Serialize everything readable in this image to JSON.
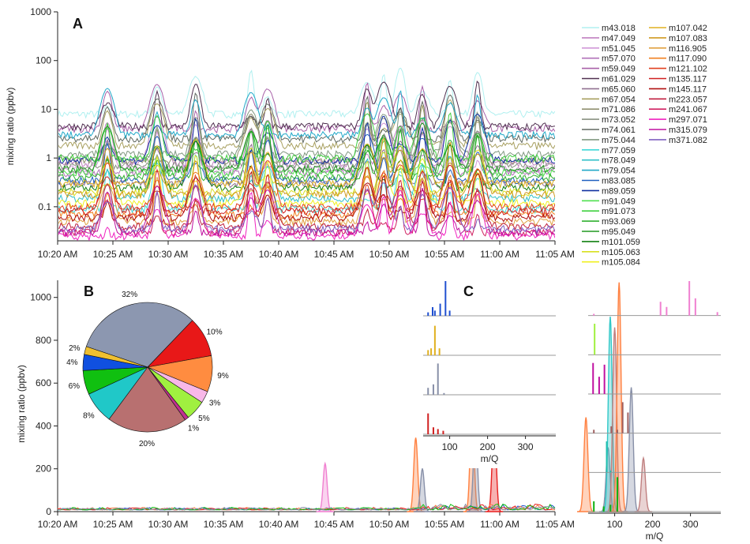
{
  "chart_data": [
    {
      "panel": "A",
      "type": "line",
      "ylabel": "mixing ratio (ppbv)",
      "yscale": "log",
      "ylim": [
        0.02,
        1000
      ],
      "y_ticks": [
        "0.1",
        "1",
        "10",
        "100",
        "1000"
      ],
      "x_ticks": [
        "10:20 AM",
        "10:25 AM",
        "10:30 AM",
        "10:35 AM",
        "10:40 AM",
        "10:45 AM",
        "10:50 AM",
        "10:55 AM",
        "11:00 AM",
        "11:05 AM"
      ],
      "legend_position": "right",
      "series": [
        {
          "name": "m43.018",
          "color": "#b0f0f0",
          "base": 8
        },
        {
          "name": "m47.049",
          "color": "#c080c0",
          "base": 0.8
        },
        {
          "name": "m51.045",
          "color": "#d098d8",
          "base": 0.6
        },
        {
          "name": "m57.070",
          "color": "#b070b8",
          "base": 0.5
        },
        {
          "name": "m59.049",
          "color": "#a860a8",
          "base": 4
        },
        {
          "name": "m61.029",
          "color": "#503050",
          "base": 4.5
        },
        {
          "name": "m65.060",
          "color": "#907090",
          "base": 0.3
        },
        {
          "name": "m67.054",
          "color": "#a8a060",
          "base": 1.8
        },
        {
          "name": "m71.086",
          "color": "#909070",
          "base": 0.9
        },
        {
          "name": "m73.052",
          "color": "#889080",
          "base": 0.7
        },
        {
          "name": "m74.061",
          "color": "#606860",
          "base": 2.5
        },
        {
          "name": "m75.044",
          "color": "#809880",
          "base": 1.2
        },
        {
          "name": "m77.059",
          "color": "#40d8d8",
          "base": 0.09
        },
        {
          "name": "m78.049",
          "color": "#30c0c8",
          "base": 0.15
        },
        {
          "name": "m79.054",
          "color": "#20a8c8",
          "base": 3
        },
        {
          "name": "m83.085",
          "color": "#2060c0",
          "base": 0.35
        },
        {
          "name": "m89.059",
          "color": "#1030a0",
          "base": 0.9
        },
        {
          "name": "m91.049",
          "color": "#50e050",
          "base": 0.5
        },
        {
          "name": "m91.073",
          "color": "#40d040",
          "base": 1.0
        },
        {
          "name": "m93.069",
          "color": "#30b030",
          "base": 0.4
        },
        {
          "name": "m95.049",
          "color": "#209820",
          "base": 0.6
        },
        {
          "name": "m101.059",
          "color": "#108010",
          "base": 0.25
        },
        {
          "name": "m105.063",
          "color": "#d8e020",
          "base": 0.2
        },
        {
          "name": "m105.084",
          "color": "#f0f020",
          "base": 0.12
        },
        {
          "name": "m107.042",
          "color": "#e0b020",
          "base": 0.3
        },
        {
          "name": "m107.083",
          "color": "#d09a20",
          "base": 0.18
        },
        {
          "name": "m116.905",
          "color": "#e0a040",
          "base": 0.05
        },
        {
          "name": "m117.090",
          "color": "#f08020",
          "base": 0.07
        },
        {
          "name": "m121.102",
          "color": "#e04020",
          "base": 0.1
        },
        {
          "name": "m135.117",
          "color": "#d02020",
          "base": 0.08
        },
        {
          "name": "m145.117",
          "color": "#b01010",
          "base": 0.06
        },
        {
          "name": "m223.057",
          "color": "#c02040",
          "base": 0.04
        },
        {
          "name": "m241.067",
          "color": "#d02060",
          "base": 0.03
        },
        {
          "name": "m297.071",
          "color": "#f020c0",
          "base": 0.025
        },
        {
          "name": "m315.079",
          "color": "#c010a0",
          "base": 0.03
        },
        {
          "name": "m371.082",
          "color": "#8060c0",
          "base": 0.035
        }
      ]
    },
    {
      "panel": "B",
      "type": "area",
      "ylabel": "mixing ratio (ppbv)",
      "ylim": [
        0,
        1080
      ],
      "y_ticks": [
        "0",
        "200",
        "400",
        "600",
        "800",
        "1000"
      ],
      "x_ticks": [
        "10:20 AM",
        "10:25 AM",
        "10:30 AM",
        "10:35 AM",
        "10:40 AM",
        "10:45 AM",
        "10:50 AM",
        "10:55 AM",
        "11:00 AM",
        "11:05 AM"
      ],
      "peaks": [
        {
          "t": 24.2,
          "v": 225,
          "color": "#f080d0"
        },
        {
          "t": 32.4,
          "v": 345,
          "color": "#ff8040"
        },
        {
          "t": 33.0,
          "v": 200,
          "color": "#8890a8"
        },
        {
          "t": 37.5,
          "v": 500,
          "color": "#ff8040"
        },
        {
          "t": 37.8,
          "v": 410,
          "color": "#8890a8"
        },
        {
          "t": 39.5,
          "v": 425,
          "color": "#e82020"
        },
        {
          "t": 47.8,
          "v": 440,
          "color": "#ff8040"
        },
        {
          "t": 49.8,
          "v": 300,
          "color": "#8890a8"
        },
        {
          "t": 50.0,
          "v": 910,
          "color": "#30c8c8"
        },
        {
          "t": 50.4,
          "v": 860,
          "color": "#c08080"
        },
        {
          "t": 50.8,
          "v": 1070,
          "color": "#ff8040"
        },
        {
          "t": 51.9,
          "v": 580,
          "color": "#8890a8"
        },
        {
          "t": 53.0,
          "v": 250,
          "color": "#c08080"
        }
      ],
      "pie": {
        "labels": [
          "32%",
          "10%",
          "9%",
          "3%",
          "5%",
          "1%",
          "20%",
          "8%",
          "6%",
          "4%",
          "2%"
        ],
        "values": [
          32,
          10,
          9,
          3,
          5,
          1,
          20,
          8,
          6,
          4,
          2
        ],
        "colors": [
          "#8c97b0",
          "#e81818",
          "#ff8c40",
          "#f8b8e8",
          "#a0f040",
          "#c03090",
          "#b87070",
          "#20c8c8",
          "#10c010",
          "#1050e0",
          "#f0c030"
        ]
      }
    },
    {
      "panel": "C",
      "type": "bar",
      "xlabel": "m/Q",
      "x_ticks": [
        "100",
        "200",
        "300"
      ],
      "left_spectra": [
        {
          "color": "#2050d0",
          "peaks": [
            [
              43,
              0.1
            ],
            [
              55,
              0.25
            ],
            [
              61,
              0.15
            ],
            [
              75,
              0.35
            ],
            [
              89,
              1.0
            ],
            [
              100,
              0.15
            ]
          ]
        },
        {
          "color": "#e0b020",
          "peaks": [
            [
              43,
              0.15
            ],
            [
              51,
              0.2
            ],
            [
              61,
              0.85
            ],
            [
              73,
              0.2
            ]
          ]
        },
        {
          "color": "#8890a8",
          "peaks": [
            [
              43,
              0.2
            ],
            [
              57,
              0.3
            ],
            [
              69,
              0.9
            ],
            [
              85,
              0.05
            ]
          ]
        },
        {
          "color": "#d02020",
          "peaks": [
            [
              43,
              0.6
            ],
            [
              57,
              0.2
            ],
            [
              69,
              0.15
            ],
            [
              83,
              0.1
            ]
          ]
        }
      ],
      "right_spectra": [
        {
          "color": "#f080d0",
          "peaks": [
            [
              45,
              0.05
            ],
            [
              221,
              0.4
            ],
            [
              237,
              0.25
            ],
            [
              297,
              1.0
            ],
            [
              313,
              0.5
            ],
            [
              371,
              0.1
            ]
          ]
        },
        {
          "color": "#a0f040",
          "peaks": [
            [
              47,
              0.9
            ]
          ]
        },
        {
          "color": "#c010a0",
          "peaks": [
            [
              43,
              0.9
            ],
            [
              59,
              0.5
            ],
            [
              73,
              0.85
            ]
          ]
        },
        {
          "color": "#a06060",
          "peaks": [
            [
              45,
              0.1
            ],
            [
              91,
              0.2
            ],
            [
              107,
              0.1
            ],
            [
              121,
              0.9
            ],
            [
              135,
              0.6
            ]
          ]
        },
        {
          "color": "#20c0b0",
          "peaks": [
            [
              79,
              0.9
            ],
            [
              89,
              0.05
            ]
          ]
        },
        {
          "color": "#10b010",
          "peaks": [
            [
              45,
              0.3
            ],
            [
              71,
              0.15
            ],
            [
              89,
              0.2
            ],
            [
              107,
              1.0
            ]
          ]
        }
      ]
    }
  ],
  "labels": {
    "panel_a": "A",
    "panel_b": "B",
    "panel_c": "C"
  }
}
